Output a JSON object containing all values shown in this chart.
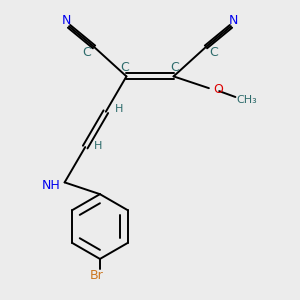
{
  "background_color": "#ececec",
  "atom_colors": {
    "C": "#2d6b6b",
    "N": "#0000ee",
    "O": "#dd0000",
    "Br": "#cc7722",
    "H": "#2d6b6b",
    "NH": "#0000ee"
  },
  "figsize": [
    3.0,
    3.0
  ],
  "dpi": 100,
  "bond_lw": 1.4,
  "font_size": 9,
  "font_size_small": 8
}
